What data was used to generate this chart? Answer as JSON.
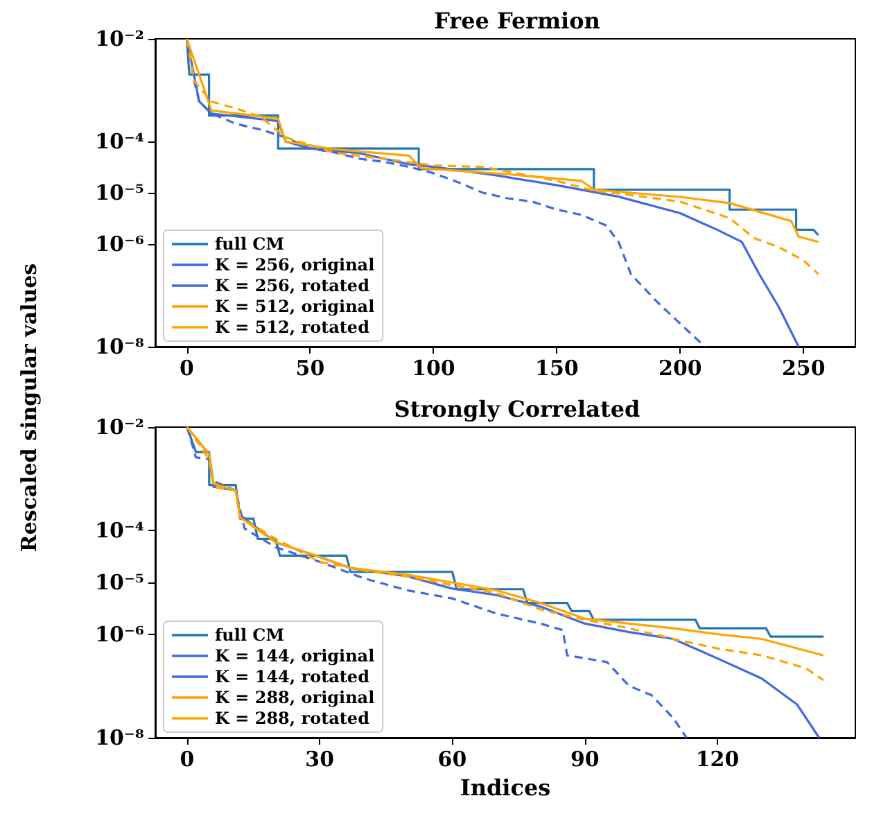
{
  "chart_data": [
    {
      "type": "line",
      "title": "Free Fermion",
      "ylabel": "Rescaled singular values",
      "log": "y",
      "grid": false,
      "legend": "bottom left",
      "marker": "none",
      "xlim": [
        -12.8,
        271
      ],
      "xticks": [
        0,
        50,
        100,
        150,
        200,
        250
      ],
      "ylim": [
        1e-08,
        0.01
      ],
      "yticks": [
        {
          "value": 0.01,
          "label": "10⁻²"
        },
        {
          "value": 0.0001,
          "label": "10⁻⁴"
        },
        {
          "value": 1e-05,
          "label": "10⁻⁵"
        },
        {
          "value": 1e-06,
          "label": "10⁻⁶"
        },
        {
          "value": 1e-08,
          "label": "10⁻⁸"
        }
      ],
      "series": [
        {
          "name": "full CM",
          "color": "#1f77b4",
          "line_style": "solid",
          "x": [
            0,
            1,
            9,
            9,
            37,
            37,
            94,
            94,
            165,
            165,
            220,
            220,
            247,
            247,
            254,
            256
          ],
          "values": [
            0.01,
            0.002,
            0.002,
            0.00032,
            0.00032,
            7.3e-05,
            7.3e-05,
            2.9e-05,
            2.9e-05,
            1.15e-05,
            1.15e-05,
            4.7e-06,
            4.7e-06,
            1.9e-06,
            1.9e-06,
            1.5e-06
          ]
        },
        {
          "name": "K = 256, original",
          "color": "#4169e1",
          "line_style": "dashed",
          "x": [
            0,
            1,
            3,
            5,
            10,
            20,
            30,
            40,
            50,
            60,
            70,
            80,
            90,
            100,
            110,
            120,
            130,
            140,
            150,
            160,
            170,
            175,
            180,
            190,
            200,
            210
          ],
          "values": [
            0.01,
            0.0048,
            0.0015,
            0.0006,
            0.00035,
            0.00022,
            0.00017,
            0.00012,
            7.3e-05,
            6.1e-05,
            4.6e-05,
            4e-05,
            3.2e-05,
            2.4e-05,
            1.6e-05,
            1e-05,
            7.8e-06,
            6.7e-06,
            4.7e-06,
            3.7e-06,
            2.3e-06,
            1.1e-06,
            2.6e-07,
            8e-08,
            2.8e-08,
            1e-08
          ]
        },
        {
          "name": "K = 256, rotated",
          "color": "#4169e1",
          "line_style": "solid",
          "x": [
            0,
            5,
            10,
            37,
            40,
            50,
            70,
            90,
            100,
            125,
            150,
            175,
            200,
            215,
            225,
            232,
            240,
            248
          ],
          "values": [
            0.01,
            0.0006,
            0.00035,
            0.00025,
            0.0001,
            7.3e-05,
            5.9e-05,
            3.6e-05,
            3.2e-05,
            2.2e-05,
            1.4e-05,
            8.4e-06,
            4e-06,
            1.9e-06,
            1.1e-06,
            2.6e-07,
            5.9e-08,
            1e-08
          ]
        },
        {
          "name": "K = 512, original",
          "color": "#ffa500",
          "line_style": "dashed",
          "x": [
            0,
            3,
            10,
            20,
            30,
            40,
            60,
            80,
            100,
            120,
            150,
            165,
            180,
            200,
            220,
            230,
            240,
            250,
            256
          ],
          "values": [
            0.01,
            0.0015,
            0.0006,
            0.00044,
            0.0003,
            0.00012,
            6e-05,
            4.6e-05,
            3.4e-05,
            3.2e-05,
            1.7e-05,
            1.1e-05,
            9e-06,
            6.7e-06,
            3.2e-06,
            1.3e-06,
            8.7e-07,
            4.8e-07,
            2.6e-07
          ]
        },
        {
          "name": "K = 512, rotated",
          "color": "#ffa500",
          "line_style": "solid",
          "x": [
            0,
            10,
            37,
            40,
            60,
            90,
            95,
            130,
            160,
            165,
            200,
            220,
            245,
            248,
            256
          ],
          "values": [
            0.01,
            0.0004,
            0.00028,
            0.0001,
            7e-05,
            5.3e-05,
            3e-05,
            2.3e-05,
            1.7e-05,
            1.15e-05,
            8.3e-06,
            6.3e-06,
            2.8e-06,
            1.4e-06,
            1.1e-06
          ]
        }
      ]
    },
    {
      "type": "line",
      "title": "Strongly Correlated",
      "xlabel": "Indices",
      "log": "y",
      "grid": false,
      "legend": "bottom left",
      "marker": "none",
      "xlim": [
        -7.2,
        151.2
      ],
      "xticks": [
        0,
        30,
        60,
        90,
        120
      ],
      "ylim": [
        1e-08,
        0.01
      ],
      "yticks": [
        {
          "value": 0.01,
          "label": "10⁻²"
        },
        {
          "value": 0.0001,
          "label": "10⁻⁴"
        },
        {
          "value": 1e-05,
          "label": "10⁻⁵"
        },
        {
          "value": 1e-06,
          "label": "10⁻⁶"
        },
        {
          "value": 1e-08,
          "label": "10⁻⁸"
        }
      ],
      "series": [
        {
          "name": "full CM",
          "color": "#1f77b4",
          "line_style": "solid",
          "x": [
            0,
            2,
            5,
            5,
            11,
            12,
            15,
            16,
            20,
            21,
            36,
            37,
            60,
            61,
            76,
            77,
            86,
            87,
            91,
            92,
            115,
            116,
            131,
            132,
            144
          ],
          "values": [
            0.01,
            0.0033,
            0.0033,
            0.00076,
            0.00076,
            0.00017,
            0.00017,
            6.9e-05,
            6.9e-05,
            3.3e-05,
            3.3e-05,
            1.6e-05,
            1.6e-05,
            7.4e-06,
            7.4e-06,
            4e-06,
            4e-06,
            2.8e-06,
            2.8e-06,
            1.9e-06,
            1.9e-06,
            1.3e-06,
            1.3e-06,
            9e-07,
            9e-07
          ]
        },
        {
          "name": "K = 144, original",
          "color": "#4169e1",
          "line_style": "dashed",
          "x": [
            0,
            2,
            5,
            6,
            11,
            13,
            20,
            30,
            40,
            50,
            60,
            70,
            80,
            85,
            86,
            95,
            100,
            105,
            110,
            113
          ],
          "values": [
            0.01,
            0.0026,
            0.0024,
            0.0009,
            0.0006,
            0.00011,
            4.8e-05,
            2.5e-05,
            1.2e-05,
            7e-06,
            4.9e-06,
            2.5e-06,
            1.6e-06,
            1.2e-06,
            3.9e-07,
            2.9e-07,
            1e-07,
            6.7e-08,
            2.4e-08,
            1e-08
          ]
        },
        {
          "name": "K = 144, rotated",
          "color": "#4169e1",
          "line_style": "solid",
          "x": [
            0,
            5,
            6,
            11,
            12,
            20,
            30,
            37,
            50,
            60,
            70,
            80,
            90,
            100,
            110,
            120,
            130,
            138,
            143
          ],
          "values": [
            0.01,
            0.003,
            0.0007,
            0.0006,
            0.0002,
            6e-05,
            3.1e-05,
            1.9e-05,
            1.3e-05,
            7.6e-06,
            5.7e-06,
            3.4e-06,
            1.6e-06,
            1.1e-06,
            8.1e-07,
            3.4e-07,
            1.4e-07,
            4.4e-08,
            1e-08
          ]
        },
        {
          "name": "K = 288, original",
          "color": "#ffa500",
          "line_style": "dashed",
          "x": [
            0,
            5,
            6,
            11,
            12,
            20,
            30,
            40,
            50,
            60,
            70,
            80,
            90,
            100,
            110,
            120,
            130,
            140,
            144
          ],
          "values": [
            0.01,
            0.0024,
            0.0007,
            0.0006,
            0.00018,
            7e-05,
            2.5e-05,
            1.7e-05,
            1.3e-05,
            8.9e-06,
            6.2e-06,
            3e-06,
            1.9e-06,
            1.3e-06,
            8.1e-07,
            5.3e-07,
            3.9e-07,
            2.2e-07,
            1.3e-07
          ]
        },
        {
          "name": "K = 288, rotated",
          "color": "#ffa500",
          "line_style": "solid",
          "x": [
            0,
            5,
            6,
            11,
            12,
            20,
            30,
            37,
            50,
            60,
            70,
            80,
            90,
            100,
            110,
            120,
            130,
            144
          ],
          "values": [
            0.01,
            0.003,
            0.0008,
            0.0006,
            0.00018,
            6e-05,
            3.1e-05,
            1.9e-05,
            1.4e-05,
            1e-05,
            7e-06,
            4e-06,
            2e-06,
            1.6e-06,
            1.3e-06,
            1e-06,
            8.1e-07,
            3.9e-07
          ]
        }
      ]
    }
  ]
}
